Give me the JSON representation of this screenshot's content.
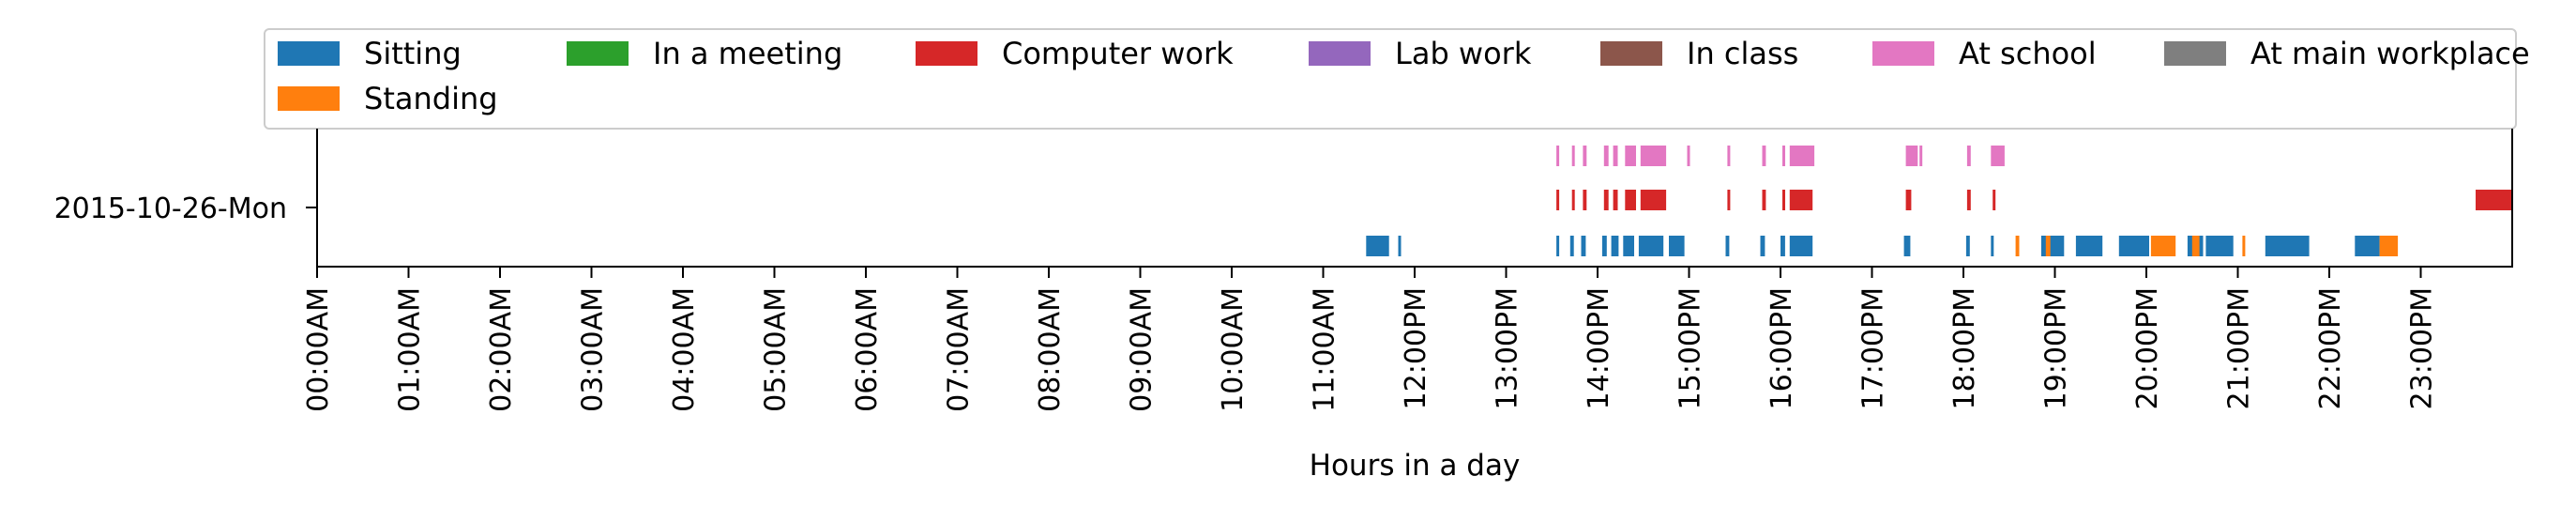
{
  "chart_data": {
    "type": "bar",
    "orientation": "horizontal-timeline",
    "xlabel": "Hours in a day",
    "ylabel": "",
    "xlim": [
      0,
      24
    ],
    "grid": false,
    "legend_placement": "top",
    "row_label": "2015-10-26-Mon",
    "x_tick_labels": [
      "00:00AM",
      "01:00AM",
      "02:00AM",
      "03:00AM",
      "04:00AM",
      "05:00AM",
      "06:00AM",
      "07:00AM",
      "08:00AM",
      "09:00AM",
      "10:00AM",
      "11:00AM",
      "12:00PM",
      "13:00PM",
      "14:00PM",
      "15:00PM",
      "16:00PM",
      "17:00PM",
      "18:00PM",
      "19:00PM",
      "20:00PM",
      "21:00PM",
      "22:00PM",
      "23:00PM"
    ],
    "legend_entries": [
      {
        "name": "Sitting",
        "color": "#1f77b4"
      },
      {
        "name": "In a meeting",
        "color": "#2ca02c"
      },
      {
        "name": "Computer work",
        "color": "#d62728"
      },
      {
        "name": "Lab work",
        "color": "#9467bd"
      },
      {
        "name": "In class",
        "color": "#8c564b"
      },
      {
        "name": "At school",
        "color": "#e377c2"
      },
      {
        "name": "At main workplace",
        "color": "#7f7f7f"
      },
      {
        "name": "Standing",
        "color": "#ff7f0e"
      }
    ],
    "series": [
      {
        "name": "Sitting",
        "color": "#1f77b4",
        "lane": 0,
        "intervals": [
          [
            11.47,
            11.72
          ],
          [
            11.82,
            11.85
          ],
          [
            13.55,
            13.57
          ],
          [
            13.7,
            13.74
          ],
          [
            13.82,
            13.87
          ],
          [
            14.05,
            14.1
          ],
          [
            14.15,
            14.23
          ],
          [
            14.28,
            14.4
          ],
          [
            14.45,
            14.72
          ],
          [
            14.78,
            14.95
          ],
          [
            15.4,
            15.44
          ],
          [
            15.78,
            15.83
          ],
          [
            16.0,
            16.05
          ],
          [
            16.1,
            16.35
          ],
          [
            17.35,
            17.42
          ],
          [
            18.03,
            18.07
          ],
          [
            18.3,
            18.33
          ],
          [
            18.85,
            19.1
          ],
          [
            19.23,
            19.52
          ],
          [
            19.7,
            20.03
          ],
          [
            20.45,
            20.62
          ],
          [
            20.65,
            20.95
          ],
          [
            21.3,
            21.78
          ],
          [
            22.28,
            22.55
          ]
        ]
      },
      {
        "name": "Standing",
        "color": "#ff7f0e",
        "lane": 0,
        "intervals": [
          [
            18.57,
            18.61
          ],
          [
            18.9,
            18.95
          ],
          [
            20.05,
            20.32
          ],
          [
            20.5,
            20.58
          ],
          [
            21.05,
            21.08
          ],
          [
            22.55,
            22.75
          ]
        ]
      },
      {
        "name": "Computer work",
        "color": "#d62728",
        "lane": 1,
        "intervals": [
          [
            13.55,
            13.58
          ],
          [
            13.72,
            13.75
          ],
          [
            13.84,
            13.88
          ],
          [
            14.07,
            14.12
          ],
          [
            14.17,
            14.22
          ],
          [
            14.3,
            14.42
          ],
          [
            14.47,
            14.75
          ],
          [
            15.42,
            15.45
          ],
          [
            15.8,
            15.84
          ],
          [
            16.02,
            16.05
          ],
          [
            16.1,
            16.35
          ],
          [
            17.37,
            17.43
          ],
          [
            18.04,
            18.08
          ],
          [
            18.32,
            18.35
          ],
          [
            23.6,
            24.0
          ]
        ]
      },
      {
        "name": "At school",
        "color": "#e377c2",
        "lane": 2,
        "intervals": [
          [
            13.55,
            13.58
          ],
          [
            13.72,
            13.75
          ],
          [
            13.84,
            13.88
          ],
          [
            14.07,
            14.12
          ],
          [
            14.17,
            14.22
          ],
          [
            14.3,
            14.42
          ],
          [
            14.47,
            14.75
          ],
          [
            14.98,
            15.01
          ],
          [
            15.42,
            15.45
          ],
          [
            15.8,
            15.84
          ],
          [
            16.02,
            16.05
          ],
          [
            16.1,
            16.37
          ],
          [
            17.37,
            17.5
          ],
          [
            17.52,
            17.55
          ],
          [
            18.04,
            18.08
          ],
          [
            18.3,
            18.45
          ]
        ]
      }
    ]
  }
}
